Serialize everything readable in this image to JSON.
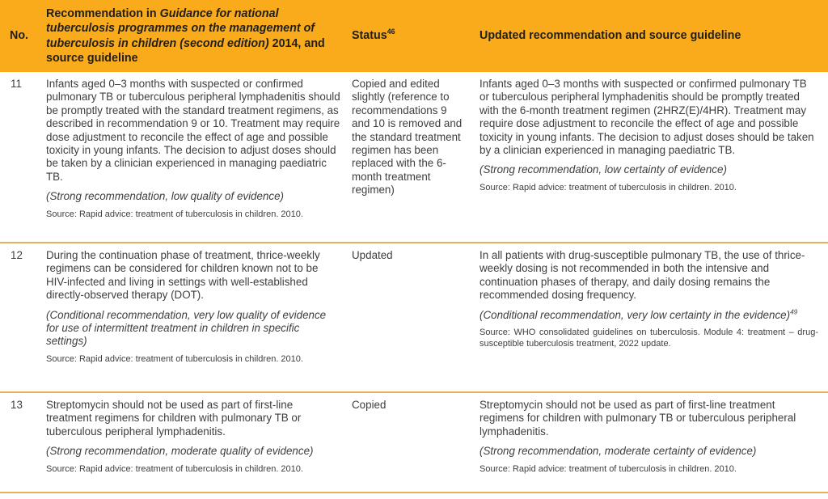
{
  "colors": {
    "header_bg": "#faab1c",
    "divider": "#e4b156",
    "body_text": "#3e3e3d",
    "header_text": "#222019"
  },
  "table": {
    "header": {
      "col_no": "No.",
      "col_rec_prefix": "Recommendation in ",
      "col_rec_italic": "Guidance for national tuberculosis programmes on the management of tuberculosis in children (second edition)",
      "col_rec_suffix": " 2014, and source guideline",
      "col_status": "Status",
      "col_status_sup": "46",
      "col_updated": "Updated recommendation and source guideline"
    },
    "rows": [
      {
        "no": "11",
        "rec_text": "Infants aged 0–3 months with suspected or confirmed pulmonary TB or tuberculous peripheral lymphadenitis should be promptly treated with the standard treatment regimens, as described in recommendation 9 or 10. Treatment may require dose adjustment to reconcile the effect of age and possible toxicity in young infants. The decision to adjust doses should be taken by a clinician experienced in managing paediatric TB.",
        "rec_note": "(Strong recommendation, low quality of evidence)",
        "rec_source": "Source: Rapid advice: treatment of tuberculosis in children. 2010.",
        "status": "Copied and edited slightly (reference to recommendations 9 and 10 is removed and the standard treatment regimen has been replaced with the 6-month treatment regimen)",
        "upd_text": "Infants aged 0–3 months with suspected or confirmed pulmonary TB or tuberculous peripheral lymphadenitis should be promptly treated with the 6-month treatment regimen (2HRZ(E)/4HR). Treatment may require dose adjustment to reconcile the effect of age and possible toxicity in young infants. The decision to adjust doses should be taken by a clinician experienced in managing paediatric TB.",
        "upd_note": "(Strong recommendation, low certainty of evidence)",
        "upd_note_sup": "",
        "upd_source": "Source: Rapid advice: treatment of tuberculosis in children. 2010."
      },
      {
        "no": "12",
        "rec_text": "During the continuation phase of treatment, thrice-weekly regimens can be considered for children known not to be HIV-infected and living in settings with well-established directly-observed therapy (DOT).",
        "rec_note": "(Conditional recommendation, very low quality of evidence for use of intermittent treatment in children in specific settings)",
        "rec_source": "Source: Rapid advice: treatment of tuberculosis in children. 2010.",
        "status": "Updated",
        "upd_text": "In all patients with drug-susceptible pulmonary TB, the use of thrice-weekly dosing is not recommended in both the intensive and continuation phases of therapy, and daily dosing remains the recommended dosing frequency.",
        "upd_note": "(Conditional recommendation, very low certainty in the evidence)",
        "upd_note_sup": "49",
        "upd_source": "Source: WHO consolidated guidelines on tuberculosis. Module 4: treatment – drug-susceptible tuberculosis treatment, 2022 update."
      },
      {
        "no": "13",
        "rec_text": "Streptomycin should not be used as part of first-line treatment regimens for children with pulmonary TB or tuberculous peripheral lymphadenitis.",
        "rec_note": "(Strong recommendation, moderate quality of evidence)",
        "rec_source": "Source: Rapid advice: treatment of tuberculosis in children. 2010.",
        "status": "Copied",
        "upd_text": "Streptomycin should not be used as part of first-line treatment regimens for children with pulmonary TB or tuberculous peripheral lymphadenitis.",
        "upd_note": "(Strong recommendation, moderate certainty of evidence)",
        "upd_note_sup": "",
        "upd_source": "Source: Rapid advice: treatment of tuberculosis in children. 2010."
      }
    ]
  }
}
